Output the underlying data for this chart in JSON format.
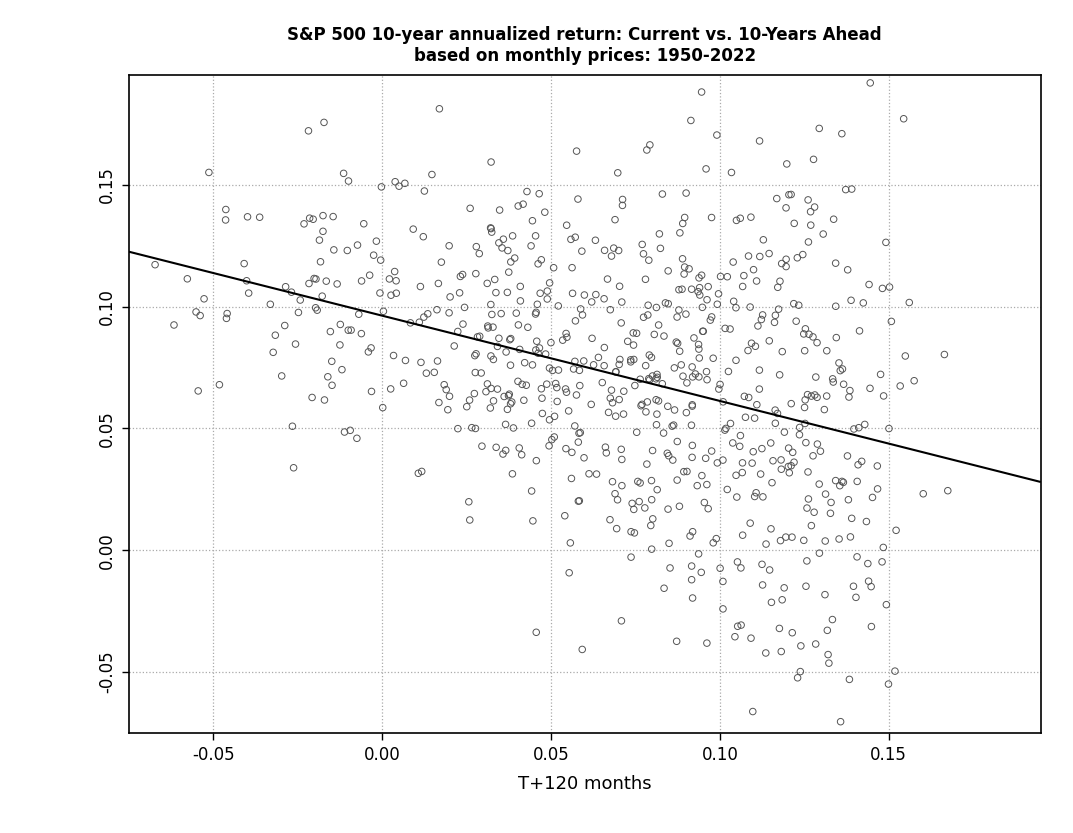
{
  "title_line1": "S&P 500 10-year annualized return: Current vs. 10-Years Ahead",
  "title_line2": "based on monthly prices: 1950-2022",
  "xlabel": "T+120 months",
  "ylabel": "",
  "xlim": [
    -0.075,
    0.195
  ],
  "ylim": [
    -0.075,
    0.195
  ],
  "xticks": [
    -0.05,
    0.0,
    0.05,
    0.1,
    0.15
  ],
  "yticks": [
    -0.05,
    0.0,
    0.05,
    0.1,
    0.15
  ],
  "grid_color": "#aaaaaa",
  "scatter_edgecolor": "#555555",
  "line_color": "#000000",
  "background_color": "#ffffff",
  "regression_x0": -0.075,
  "regression_x1": 0.195,
  "regression_y0": 0.1225,
  "regression_y1": 0.028,
  "seed": 7
}
